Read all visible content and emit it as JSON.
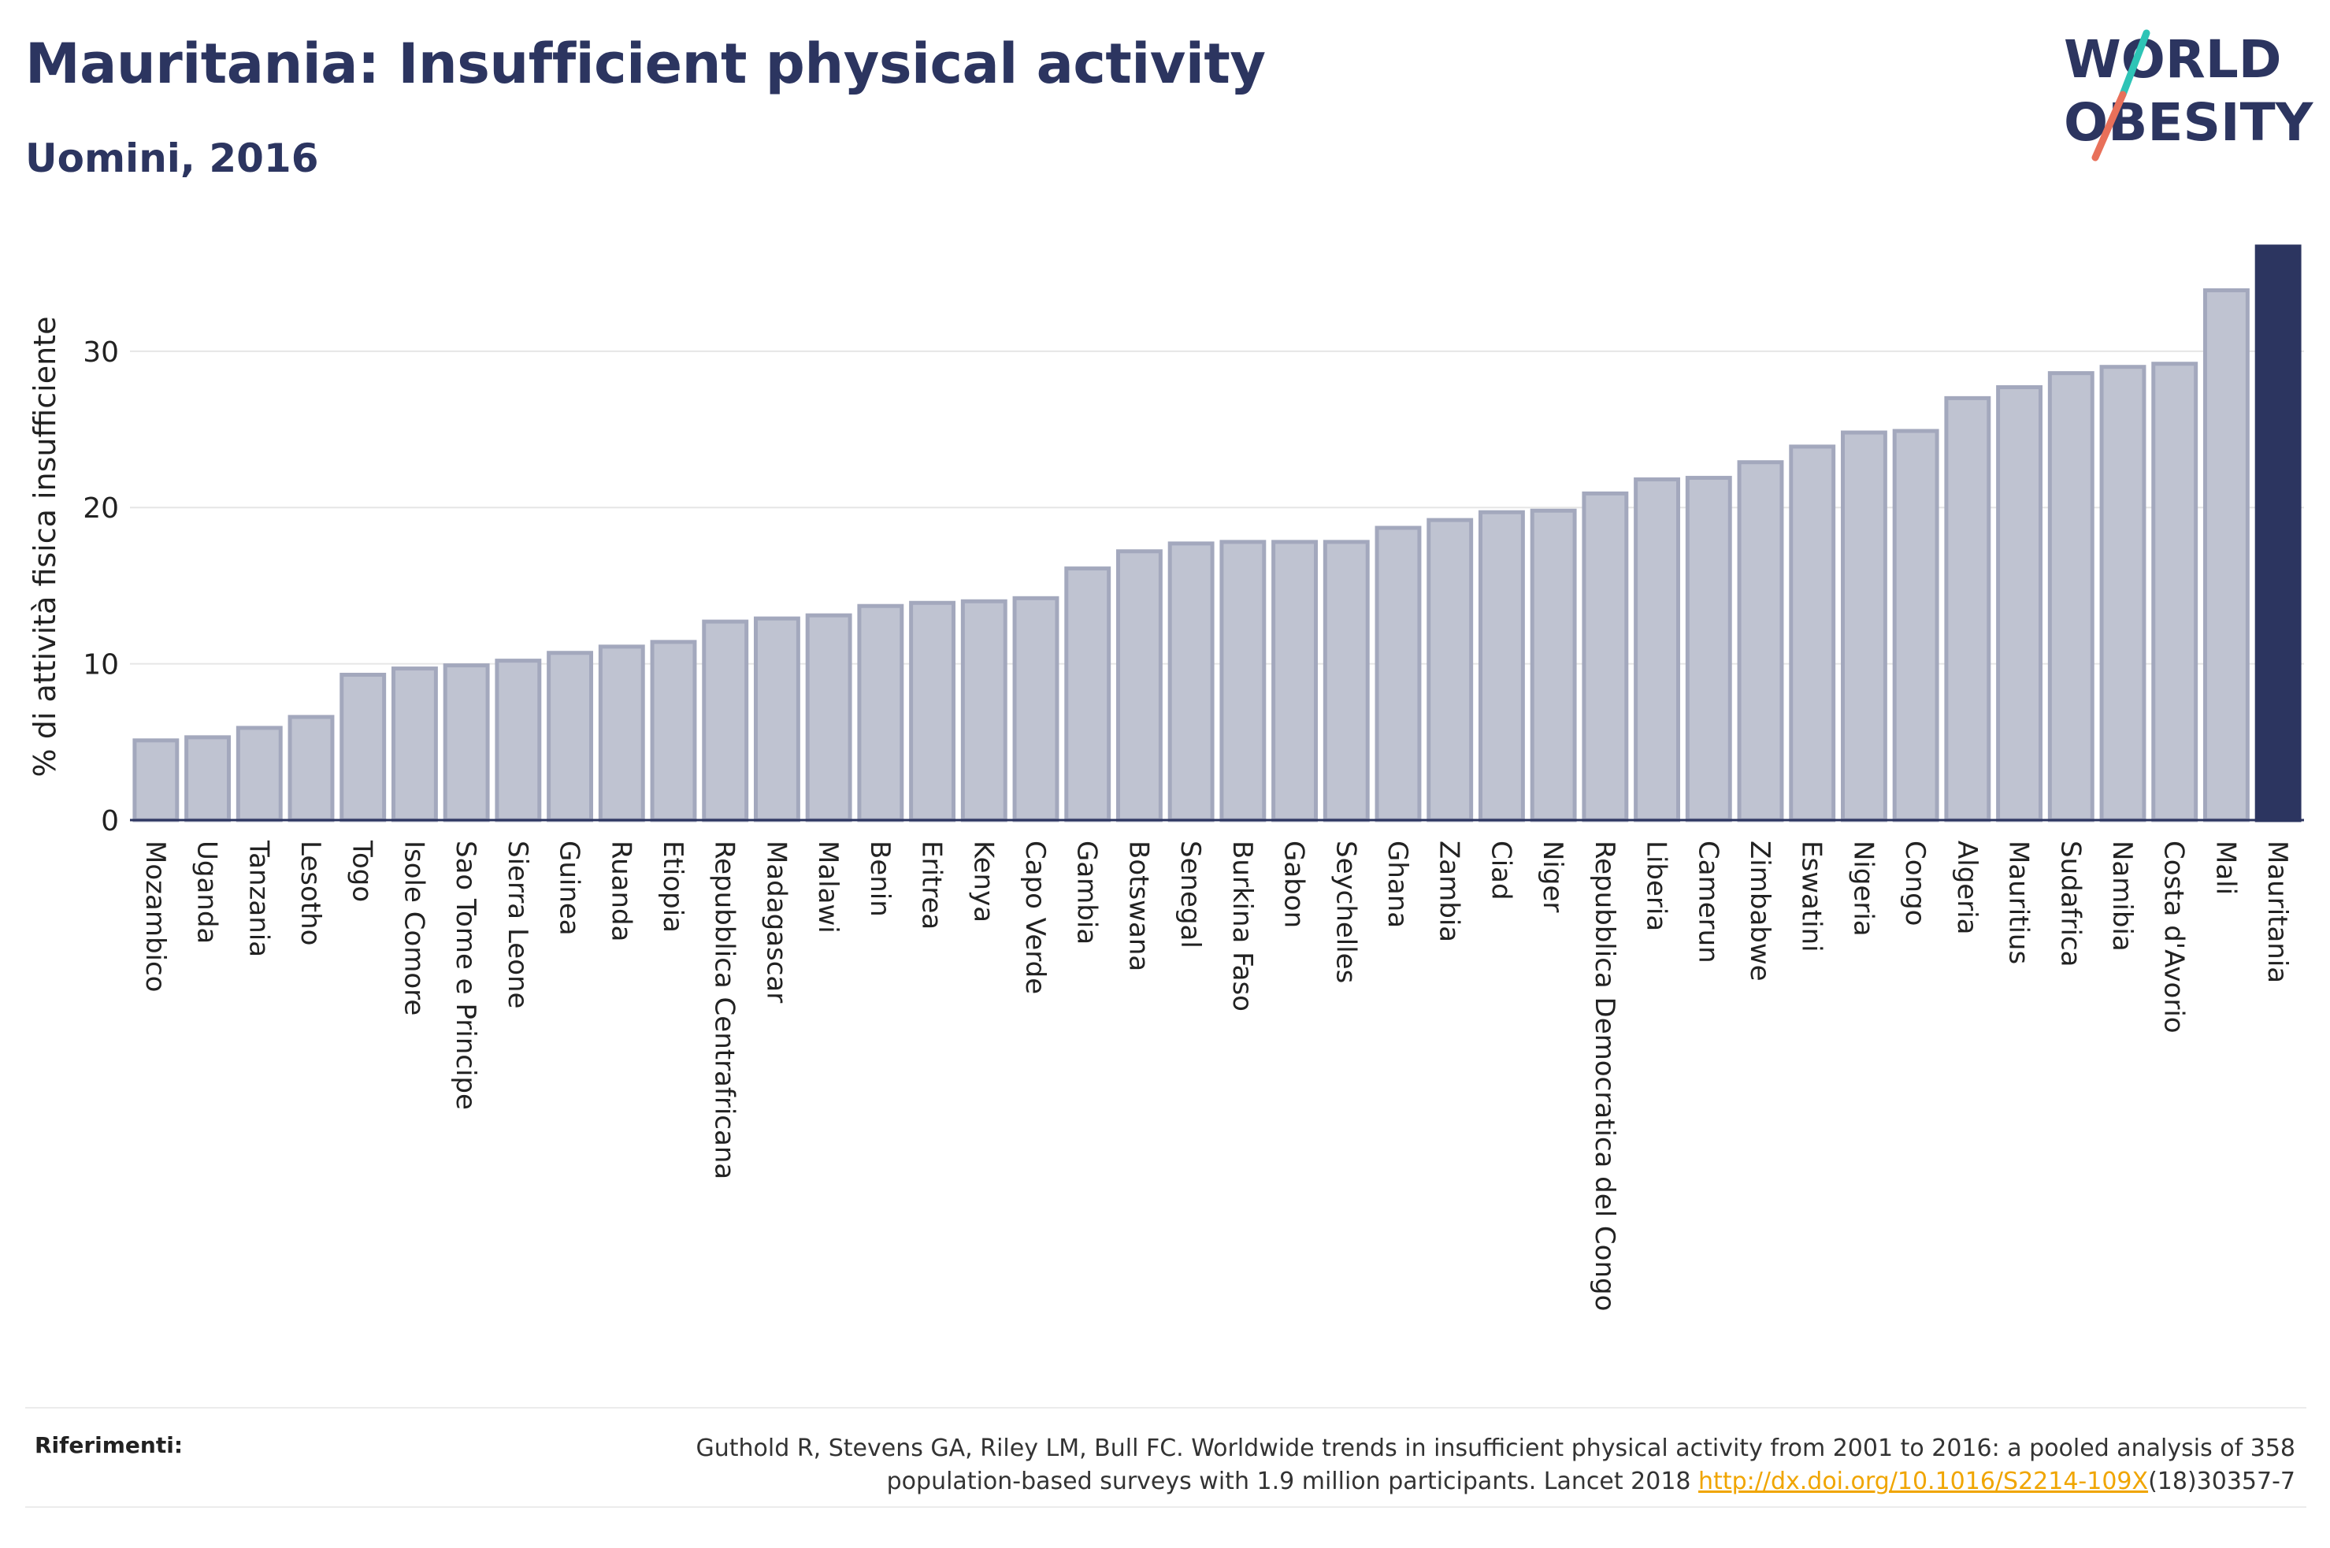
{
  "header": {
    "title": "Mauritania: Insufficient physical activity",
    "subtitle": "Uomini, 2016"
  },
  "logo": {
    "line1": "WORLD",
    "line2": "OBESITY",
    "colors": {
      "text": "#2c3560",
      "slash_teal": "#2ec4b6",
      "slash_coral": "#e8705a"
    }
  },
  "colors": {
    "bar_default": "#bfc3d1",
    "bar_default_stroke": "#a3a8bd",
    "bar_highlight": "#2c3560",
    "grid": "#e6e6e6",
    "axis": "#2c3560"
  },
  "chart_data": {
    "type": "bar",
    "ylabel": "% di attività fisica insufficiente",
    "xlabel": "",
    "ylim": [
      0,
      37
    ],
    "yticks": [
      0,
      10,
      20,
      30
    ],
    "grid": true,
    "highlight": "Mauritania",
    "categories": [
      "Mozambico",
      "Uganda",
      "Tanzania",
      "Lesotho",
      "Togo",
      "Isole Comore",
      "Sao Tome e Principe",
      "Sierra Leone",
      "Guinea",
      "Ruanda",
      "Etiopia",
      "Repubblica Centrafricana",
      "Madagascar",
      "Malawi",
      "Benin",
      "Eritrea",
      "Kenya",
      "Capo Verde",
      "Gambia",
      "Botswana",
      "Senegal",
      "Burkina Faso",
      "Gabon",
      "Seychelles",
      "Ghana",
      "Zambia",
      "Ciad",
      "Niger",
      "Repubblica Democratica del Congo",
      "Liberia",
      "Camerun",
      "Zimbabwe",
      "Eswatini",
      "Nigeria",
      "Congo",
      "Algeria",
      "Mauritius",
      "Sudafrica",
      "Namibia",
      "Costa d'Avorio",
      "Mali",
      "Mauritania"
    ],
    "values": [
      5.1,
      5.3,
      5.9,
      6.6,
      9.3,
      9.7,
      9.9,
      10.2,
      10.7,
      11.1,
      11.4,
      12.7,
      12.9,
      13.1,
      13.7,
      13.9,
      14.0,
      14.2,
      16.1,
      17.2,
      17.7,
      17.8,
      17.8,
      17.8,
      18.7,
      19.2,
      19.7,
      19.8,
      20.9,
      21.8,
      21.9,
      22.9,
      23.9,
      24.8,
      24.9,
      27.0,
      27.7,
      28.6,
      29.0,
      29.2,
      33.9,
      36.7
    ]
  },
  "footer": {
    "ref_label": "Riferimenti:",
    "ref_text_1": "Guthold R, Stevens GA, Riley LM, Bull FC. Worldwide trends in insufficient physical activity from 2001 to 2016: a pooled analysis of 358",
    "ref_text_2": "population-based surveys with 1.9 million participants. Lancet 2018 ",
    "ref_link": "http://dx.doi.org/10.1016/S2214-109X",
    "ref_text_3": "(18)30357-7"
  }
}
